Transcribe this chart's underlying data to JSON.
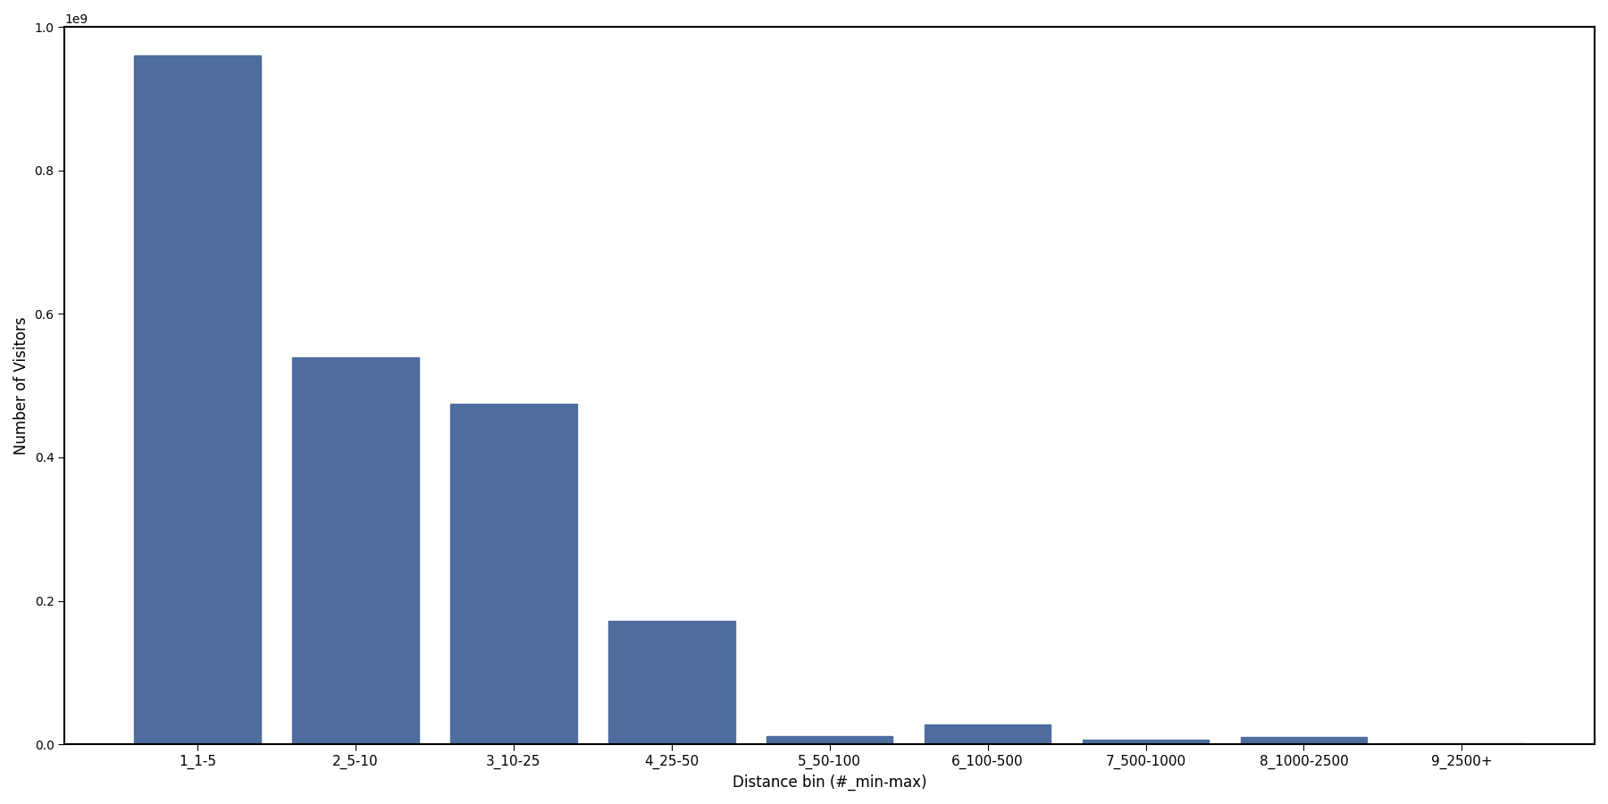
{
  "categories": [
    "1_1-5",
    "2_5-10",
    "3_10-25",
    "4_25-50",
    "5_50-100",
    "6_100-500",
    "7_500-1000",
    "8_1000-2500",
    "9_2500+"
  ],
  "values": [
    960000000,
    540000000,
    475000000,
    172000000,
    12000000,
    27000000,
    7000000,
    10000000,
    2000000
  ],
  "bar_color": "#4e6d9e",
  "xlabel": "Distance bin (#_min-max)",
  "ylabel": "Number of Visitors",
  "ylim": [
    0,
    1000000000
  ],
  "figsize": [
    18.0,
    9.0
  ],
  "dpi": 100,
  "background_color": "#ffffff"
}
